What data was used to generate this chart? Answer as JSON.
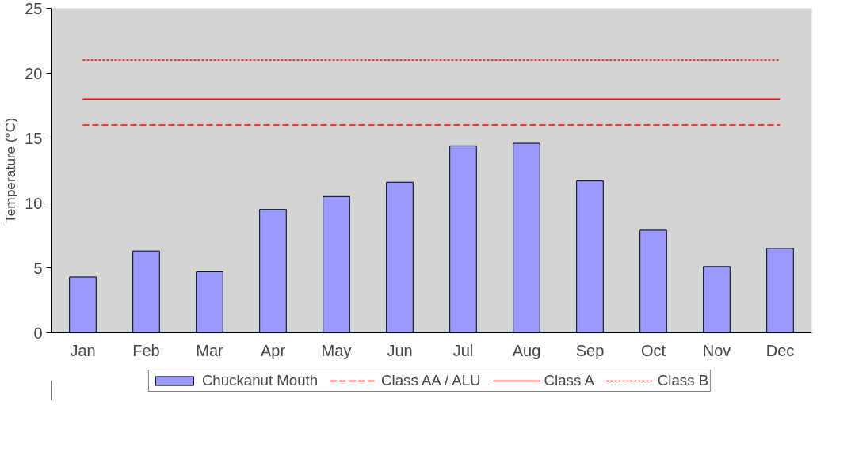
{
  "chart_data": {
    "type": "bar",
    "ylabel": "Temperature (°C)",
    "categories": [
      "Jan",
      "Feb",
      "Mar",
      "Apr",
      "May",
      "Jun",
      "Jul",
      "Aug",
      "Sep",
      "Oct",
      "Nov",
      "Dec"
    ],
    "series": [
      {
        "name": "Chuckanut Mouth",
        "color": "#9999ff",
        "values": [
          4.3,
          6.3,
          4.7,
          9.5,
          10.5,
          11.6,
          14.4,
          14.6,
          11.7,
          7.9,
          5.1,
          6.5
        ]
      },
      {
        "name": "Class AA / ALU",
        "type": "line",
        "line_style": "dashed",
        "color": "#ff0000",
        "values": [
          16,
          16,
          16,
          16,
          16,
          16,
          16,
          16,
          16,
          16,
          16,
          16
        ]
      },
      {
        "name": "Class A",
        "type": "line",
        "line_style": "solid",
        "color": "#ff0000",
        "values": [
          18,
          18,
          18,
          18,
          18,
          18,
          18,
          18,
          18,
          18,
          18,
          18
        ]
      },
      {
        "name": "Class B",
        "type": "line",
        "line_style": "dotted",
        "color": "#ff0000",
        "values": [
          21,
          21,
          21,
          21,
          21,
          21,
          21,
          21,
          21,
          21,
          21,
          21
        ]
      }
    ],
    "ylim": [
      0,
      25
    ],
    "yticks": [
      0,
      5,
      10,
      15,
      20,
      25
    ],
    "grid": false,
    "legend": "bottom"
  }
}
